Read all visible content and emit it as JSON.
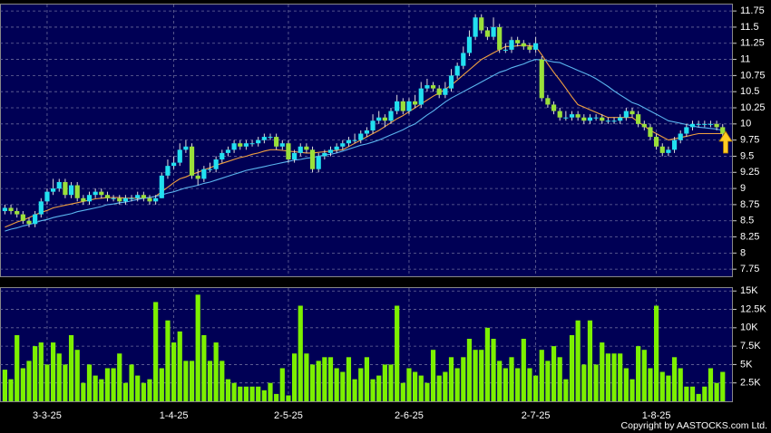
{
  "chart_data": {
    "type": "candlestick",
    "categories": [
      null,
      null,
      null,
      null,
      null,
      null,
      null,
      "3-3-25",
      null,
      null,
      null,
      null,
      null,
      null,
      null,
      null,
      null,
      null,
      null,
      null,
      null,
      null,
      null,
      null,
      null,
      null,
      null,
      null,
      "1-4-25",
      null,
      null,
      null,
      null,
      null,
      null,
      null,
      null,
      null,
      null,
      null,
      null,
      null,
      null,
      null,
      null,
      null,
      null,
      "2-5-25",
      null,
      null,
      null,
      null,
      null,
      null,
      null,
      null,
      null,
      null,
      null,
      null,
      null,
      null,
      null,
      null,
      null,
      null,
      null,
      "2-6-25",
      null,
      null,
      null,
      null,
      null,
      null,
      null,
      null,
      null,
      null,
      null,
      null,
      null,
      null,
      null,
      null,
      null,
      null,
      null,
      null,
      "2-7-25",
      null,
      null,
      null,
      null,
      null,
      null,
      null,
      null,
      null,
      null,
      null,
      null,
      null,
      null,
      null,
      null,
      null,
      null,
      null,
      "1-8-25",
      null,
      null,
      null,
      null,
      null,
      null,
      null,
      null,
      null,
      null,
      null
    ],
    "ohlc": [
      [
        8.65,
        8.75,
        8.6,
        8.7
      ],
      [
        8.7,
        8.75,
        8.6,
        8.65
      ],
      [
        8.65,
        8.7,
        8.55,
        8.6
      ],
      [
        8.6,
        8.65,
        8.45,
        8.5
      ],
      [
        8.5,
        8.55,
        8.4,
        8.45
      ],
      [
        8.45,
        8.65,
        8.4,
        8.6
      ],
      [
        8.6,
        8.85,
        8.55,
        8.8
      ],
      [
        8.8,
        9.0,
        8.75,
        8.95
      ],
      [
        8.95,
        9.15,
        8.9,
        9.0
      ],
      [
        9.0,
        9.15,
        8.95,
        9.1
      ],
      [
        9.1,
        9.15,
        8.85,
        8.9
      ],
      [
        8.9,
        9.1,
        8.85,
        9.05
      ],
      [
        9.05,
        9.1,
        8.8,
        8.85
      ],
      [
        8.85,
        8.9,
        8.75,
        8.8
      ],
      [
        8.8,
        8.95,
        8.75,
        8.9
      ],
      [
        8.9,
        9.0,
        8.85,
        8.95
      ],
      [
        8.95,
        9.0,
        8.85,
        8.9
      ],
      [
        8.9,
        8.95,
        8.8,
        8.85
      ],
      [
        8.85,
        8.9,
        8.8,
        8.85
      ],
      [
        8.85,
        8.9,
        8.75,
        8.8
      ],
      [
        8.8,
        8.9,
        8.75,
        8.85
      ],
      [
        8.85,
        8.9,
        8.8,
        8.85
      ],
      [
        8.85,
        8.95,
        8.8,
        8.9
      ],
      [
        8.9,
        8.95,
        8.8,
        8.85
      ],
      [
        8.85,
        8.9,
        8.75,
        8.8
      ],
      [
        8.8,
        8.9,
        8.75,
        8.85
      ],
      [
        8.85,
        9.25,
        8.85,
        9.2
      ],
      [
        9.2,
        9.45,
        9.15,
        9.35
      ],
      [
        9.35,
        9.5,
        9.3,
        9.4
      ],
      [
        9.4,
        9.7,
        9.35,
        9.6
      ],
      [
        9.6,
        9.75,
        9.55,
        9.65
      ],
      [
        9.65,
        9.7,
        9.15,
        9.2
      ],
      [
        9.2,
        9.3,
        9.05,
        9.15
      ],
      [
        9.15,
        9.35,
        9.1,
        9.3
      ],
      [
        9.3,
        9.4,
        9.25,
        9.3
      ],
      [
        9.3,
        9.5,
        9.25,
        9.45
      ],
      [
        9.45,
        9.6,
        9.4,
        9.55
      ],
      [
        9.55,
        9.65,
        9.5,
        9.6
      ],
      [
        9.6,
        9.75,
        9.55,
        9.7
      ],
      [
        9.7,
        9.75,
        9.6,
        9.65
      ],
      [
        9.65,
        9.75,
        9.6,
        9.7
      ],
      [
        9.7,
        9.75,
        9.65,
        9.7
      ],
      [
        9.7,
        9.8,
        9.65,
        9.75
      ],
      [
        9.75,
        9.85,
        9.7,
        9.8
      ],
      [
        9.8,
        9.85,
        9.75,
        9.8
      ],
      [
        9.8,
        9.85,
        9.6,
        9.65
      ],
      [
        9.65,
        9.75,
        9.6,
        9.7
      ],
      [
        9.7,
        9.75,
        9.4,
        9.45
      ],
      [
        9.45,
        9.6,
        9.4,
        9.55
      ],
      [
        9.55,
        9.7,
        9.5,
        9.65
      ],
      [
        9.65,
        9.7,
        9.55,
        9.6
      ],
      [
        9.6,
        9.65,
        9.25,
        9.3
      ],
      [
        9.3,
        9.55,
        9.25,
        9.5
      ],
      [
        9.5,
        9.6,
        9.45,
        9.55
      ],
      [
        9.55,
        9.65,
        9.5,
        9.6
      ],
      [
        9.6,
        9.7,
        9.55,
        9.65
      ],
      [
        9.65,
        9.75,
        9.6,
        9.7
      ],
      [
        9.7,
        9.8,
        9.65,
        9.75
      ],
      [
        9.75,
        9.85,
        9.7,
        9.75
      ],
      [
        9.75,
        9.9,
        9.7,
        9.85
      ],
      [
        9.85,
        9.95,
        9.8,
        9.9
      ],
      [
        9.9,
        10.15,
        9.85,
        10.05
      ],
      [
        10.05,
        10.2,
        10.0,
        10.1
      ],
      [
        10.1,
        10.15,
        9.95,
        10.05
      ],
      [
        10.05,
        10.25,
        10.0,
        10.2
      ],
      [
        10.2,
        10.45,
        10.15,
        10.35
      ],
      [
        10.35,
        10.4,
        10.15,
        10.2
      ],
      [
        10.2,
        10.4,
        10.15,
        10.35
      ],
      [
        10.35,
        10.45,
        10.25,
        10.3
      ],
      [
        10.3,
        10.65,
        10.25,
        10.55
      ],
      [
        10.55,
        10.7,
        10.5,
        10.6
      ],
      [
        10.6,
        10.65,
        10.5,
        10.55
      ],
      [
        10.55,
        10.6,
        10.4,
        10.45
      ],
      [
        10.45,
        10.65,
        10.4,
        10.55
      ],
      [
        10.55,
        10.85,
        10.5,
        10.75
      ],
      [
        10.75,
        10.95,
        10.7,
        10.9
      ],
      [
        10.9,
        11.2,
        10.85,
        11.1
      ],
      [
        11.1,
        11.45,
        11.05,
        11.35
      ],
      [
        11.35,
        11.7,
        11.3,
        11.65
      ],
      [
        11.65,
        11.7,
        11.4,
        11.45
      ],
      [
        11.45,
        11.5,
        11.3,
        11.35
      ],
      [
        11.35,
        11.65,
        11.3,
        11.5
      ],
      [
        11.5,
        11.55,
        11.1,
        11.15
      ],
      [
        11.15,
        11.25,
        11.1,
        11.15
      ],
      [
        11.15,
        11.35,
        11.1,
        11.3
      ],
      [
        11.3,
        11.35,
        11.2,
        11.25
      ],
      [
        11.25,
        11.3,
        11.15,
        11.2
      ],
      [
        11.2,
        11.25,
        11.1,
        11.15
      ],
      [
        11.15,
        11.35,
        11.1,
        11.25
      ],
      [
        11.0,
        11.05,
        10.35,
        10.4
      ],
      [
        10.4,
        10.45,
        10.25,
        10.3
      ],
      [
        10.3,
        10.35,
        10.15,
        10.2
      ],
      [
        10.2,
        10.25,
        10.05,
        10.1
      ],
      [
        10.1,
        10.2,
        10.05,
        10.1
      ],
      [
        10.1,
        10.2,
        10.05,
        10.15
      ],
      [
        10.15,
        10.2,
        10.05,
        10.1
      ],
      [
        10.1,
        10.15,
        10.0,
        10.05
      ],
      [
        10.05,
        10.15,
        10.0,
        10.1
      ],
      [
        10.1,
        10.15,
        10.05,
        10.1
      ],
      [
        10.1,
        10.15,
        10.0,
        10.05
      ],
      [
        10.05,
        10.1,
        10.0,
        10.05
      ],
      [
        10.05,
        10.1,
        10.0,
        10.05
      ],
      [
        10.05,
        10.15,
        10.0,
        10.1
      ],
      [
        10.1,
        10.25,
        10.05,
        10.2
      ],
      [
        10.2,
        10.25,
        10.1,
        10.15
      ],
      [
        10.15,
        10.2,
        9.95,
        10.0
      ],
      [
        10.0,
        10.05,
        9.9,
        9.95
      ],
      [
        9.95,
        10.0,
        9.75,
        9.8
      ],
      [
        9.8,
        9.85,
        9.6,
        9.65
      ],
      [
        9.65,
        9.7,
        9.5,
        9.55
      ],
      [
        9.55,
        9.65,
        9.5,
        9.6
      ],
      [
        9.6,
        9.8,
        9.55,
        9.75
      ],
      [
        9.75,
        9.9,
        9.7,
        9.85
      ],
      [
        9.85,
        10.0,
        9.8,
        9.95
      ],
      [
        9.95,
        10.05,
        9.9,
        10.0
      ],
      [
        10.0,
        10.05,
        9.95,
        10.0
      ],
      [
        10.0,
        10.05,
        9.95,
        10.0
      ],
      [
        10.0,
        10.05,
        9.95,
        10.0
      ],
      [
        10.0,
        10.05,
        9.9,
        9.95
      ],
      [
        9.95,
        10.0,
        9.8,
        9.85
      ]
    ],
    "up_color": "#22e0f0",
    "down_color": "#9ae03a",
    "ylim": [
      7.64,
      11.85
    ],
    "yticks": [
      7.75,
      8,
      8.25,
      8.5,
      8.75,
      9,
      9.25,
      9.5,
      9.75,
      10,
      10.25,
      10.5,
      10.75,
      11,
      11.25,
      11.5,
      11.75
    ],
    "grid": true,
    "lines": [
      {
        "color": "#f0a040",
        "values": [
          8.4,
          8.44,
          8.48,
          8.51,
          8.55,
          8.59,
          8.63,
          8.66,
          8.7,
          8.72,
          8.74,
          8.76,
          8.78,
          8.8,
          8.82,
          8.84,
          8.85,
          8.86,
          8.86,
          8.86,
          8.85,
          8.85,
          8.85,
          8.85,
          8.86,
          8.88,
          8.95,
          9.02,
          9.09,
          9.15,
          9.18,
          9.22,
          9.25,
          9.29,
          9.32,
          9.36,
          9.39,
          9.42,
          9.45,
          9.48,
          9.5,
          9.53,
          9.55,
          9.58,
          9.6,
          9.6,
          9.59,
          9.58,
          9.57,
          9.56,
          9.55,
          9.55,
          9.56,
          9.57,
          9.58,
          9.59,
          9.6,
          9.65,
          9.7,
          9.75,
          9.8,
          9.85,
          9.9,
          9.96,
          10.02,
          10.08,
          10.13,
          10.19,
          10.25,
          10.31,
          10.37,
          10.43,
          10.48,
          10.54,
          10.6,
          10.68,
          10.76,
          10.84,
          10.92,
          11.0,
          11.05,
          11.1,
          11.15,
          11.2,
          11.2,
          11.21,
          11.22,
          11.21,
          11.2,
          11.07,
          10.93,
          10.8,
          10.68,
          10.55,
          10.42,
          10.3,
          10.26,
          10.22,
          10.18,
          10.14,
          10.1,
          10.1,
          10.1,
          10.1,
          10.1,
          10.03,
          9.97,
          9.9,
          9.85,
          9.8,
          9.75,
          9.77,
          9.79,
          9.81,
          9.83,
          9.85,
          9.85,
          9.85,
          9.85,
          9.85
        ]
      },
      {
        "color": "#5ab4ee",
        "values": [
          8.34,
          8.37,
          8.39,
          8.42,
          8.44,
          8.47,
          8.5,
          8.52,
          8.55,
          8.57,
          8.59,
          8.61,
          8.64,
          8.66,
          8.68,
          8.7,
          8.72,
          8.75,
          8.76,
          8.78,
          8.79,
          8.81,
          8.83,
          8.85,
          8.86,
          8.88,
          8.9,
          8.93,
          8.95,
          8.98,
          9.01,
          9.03,
          9.05,
          9.08,
          9.1,
          9.13,
          9.16,
          9.19,
          9.22,
          9.25,
          9.28,
          9.3,
          9.32,
          9.34,
          9.36,
          9.38,
          9.4,
          9.42,
          9.44,
          9.45,
          9.47,
          9.48,
          9.5,
          9.52,
          9.53,
          9.55,
          9.58,
          9.61,
          9.64,
          9.67,
          9.69,
          9.72,
          9.75,
          9.79,
          9.83,
          9.87,
          9.91,
          9.96,
          10.0,
          10.07,
          10.14,
          10.2,
          10.27,
          10.34,
          10.4,
          10.45,
          10.5,
          10.55,
          10.6,
          10.65,
          10.7,
          10.75,
          10.8,
          10.83,
          10.87,
          10.9,
          10.93,
          10.97,
          11.0,
          10.99,
          10.98,
          10.96,
          10.95,
          10.91,
          10.87,
          10.83,
          10.79,
          10.75,
          10.7,
          10.64,
          10.58,
          10.51,
          10.45,
          10.39,
          10.33,
          10.3,
          10.25,
          10.2,
          10.15,
          10.1,
          10.05,
          10.03,
          10.01,
          9.99,
          9.97,
          9.95,
          9.94,
          9.93,
          9.92,
          9.9
        ]
      }
    ],
    "volume": {
      "type": "bar",
      "color": "#7cf000",
      "values": [
        4300,
        3000,
        9000,
        4500,
        5500,
        7500,
        8000,
        5000,
        8000,
        6500,
        5000,
        9000,
        7000,
        2500,
        5000,
        3500,
        3000,
        4500,
        4500,
        6500,
        2500,
        5000,
        3500,
        2500,
        3000,
        13500,
        4500,
        11000,
        8000,
        9500,
        5500,
        5500,
        14500,
        9000,
        5500,
        8000,
        5500,
        3000,
        2500,
        2000,
        2000,
        2000,
        2000,
        1500,
        2500,
        1000,
        4500,
        800,
        6500,
        13000,
        6500,
        5000,
        5500,
        6000,
        6000,
        4500,
        4000,
        6000,
        3000,
        4500,
        6000,
        3000,
        3500,
        5000,
        5000,
        13000,
        2500,
        4500,
        4000,
        3500,
        2500,
        7000,
        3500,
        4000,
        6000,
        4500,
        6000,
        8500,
        7000,
        7000,
        10000,
        8500,
        5500,
        4500,
        6000,
        4500,
        8500,
        4500,
        3500,
        7000,
        5500,
        7500,
        6000,
        3000,
        9000,
        11000,
        5000,
        11000,
        5000,
        8000,
        6500,
        6500,
        6500,
        4500,
        3000,
        7500,
        7000,
        4500,
        13000,
        4000,
        3500,
        6000,
        4500,
        2000,
        2000,
        1000,
        2000,
        4500,
        2500,
        4000
      ],
      "ylim": [
        0,
        15400
      ],
      "yticks": [
        {
          "value": 2500,
          "label": "2.5K"
        },
        {
          "value": 5000,
          "label": "5K"
        },
        {
          "value": 7500,
          "label": "7.5K"
        },
        {
          "value": 10000,
          "label": "10K"
        },
        {
          "value": 12500,
          "label": "12.5K"
        },
        {
          "value": 15000,
          "label": "15K"
        }
      ]
    },
    "copyright": "Copyright by AASTOCKS.com Ltd."
  }
}
